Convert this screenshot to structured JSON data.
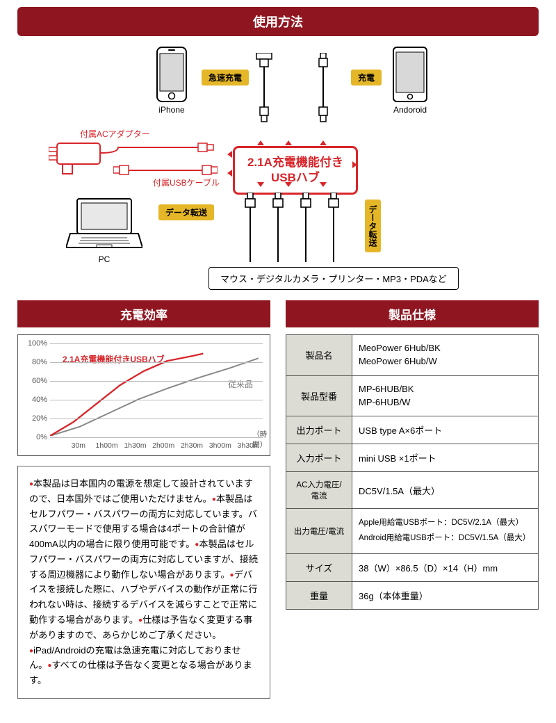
{
  "usage": {
    "header": "使用方法",
    "devices": {
      "iphone": "iPhone",
      "android": "Andoroid",
      "pc": "PC"
    },
    "labels": {
      "adapter": "付属ACアダプター",
      "usb_cable": "付属USBケーブル",
      "fast_charge": "急速充電",
      "charge": "充電",
      "data_transfer": "データ転送",
      "data_transfer_v": "データ転送"
    },
    "hub": {
      "line1": "2.1A充電機能付き",
      "line2": "USBハブ"
    },
    "peripherals": "マウス・デジタルカメラ・プリンター・MP3・PDAなど"
  },
  "chart": {
    "header": "充電効率",
    "y_ticks": [
      "0%",
      "20%",
      "40%",
      "60%",
      "80%",
      "100%"
    ],
    "x_ticks": [
      "30m",
      "1h00m",
      "1h30m",
      "2h00m",
      "2h30m",
      "3h00m",
      "3h30m"
    ],
    "x_unit": "（時間）",
    "legend_hub": "2.1A充電機能付きUSBハブ",
    "legend_old": "従来品",
    "series_hub": {
      "color": "#d8252a",
      "points": [
        [
          0,
          0
        ],
        [
          11,
          15
        ],
        [
          22,
          35
        ],
        [
          33,
          55
        ],
        [
          44,
          70
        ],
        [
          55,
          81
        ],
        [
          66,
          86
        ],
        [
          72,
          89
        ]
      ]
    },
    "series_old": {
      "color": "#888888",
      "points": [
        [
          0,
          0
        ],
        [
          14,
          10
        ],
        [
          28,
          25
        ],
        [
          42,
          40
        ],
        [
          56,
          52
        ],
        [
          70,
          63
        ],
        [
          84,
          73
        ],
        [
          98,
          84
        ]
      ]
    },
    "gridline_color": "#bbbbbb"
  },
  "notes": {
    "text": "本製品は日本国内の電源を想定して設計されていますので、日本国外ではご使用いただけません。|本製品はセルフパワー・バスパワーの両方に対応しています。バスパワーモードで使用する場合は4ポートの合計値が400mA以内の場合に限り使用可能です。|本製品はセルフパワー・バスパワーの両方に対応していますが、接続する周辺機器により動作しない場合があります。|デバイスを接続した際に、ハブやデバイスの動作が正常に行われない時は、接続するデバイスを減らすことで正常に動作する場合があります。|仕様は予告なく変更する事がありますので、あらかじめご了承ください。|iPad/Androidの充電は急速充電に対応しておりません。|すべての仕様は予告なく変更となる場合があります。"
  },
  "spec": {
    "header": "製品仕様",
    "rows": [
      {
        "label": "製品名",
        "value": "MeoPower 6Hub/BK\nMeoPower 6Hub/W"
      },
      {
        "label": "製品型番",
        "value": "MP-6HUB/BK\nMP-6HUB/W"
      },
      {
        "label": "出力ポート",
        "value": "USB type A×6ポート"
      },
      {
        "label": "入力ポート",
        "value": "mini USB ×1ポート"
      },
      {
        "label": "AC入力電圧/電流",
        "value": "DC5V/1.5A（最大）"
      },
      {
        "label": "出力電圧/電流",
        "value": "Apple用給電USBポート：DC5V/2.1A（最大）\nAndroid用給電USBポート：DC5V/1.5A（最大）",
        "small": true
      },
      {
        "label": "サイズ",
        "value": "38（W）×86.5（D）×14（H）mm"
      },
      {
        "label": "重量",
        "value": "36g（本体重量）"
      }
    ]
  },
  "colors": {
    "brand_red": "#8f1620",
    "accent_red": "#d8252a",
    "badge_yellow": "#e5b728"
  }
}
